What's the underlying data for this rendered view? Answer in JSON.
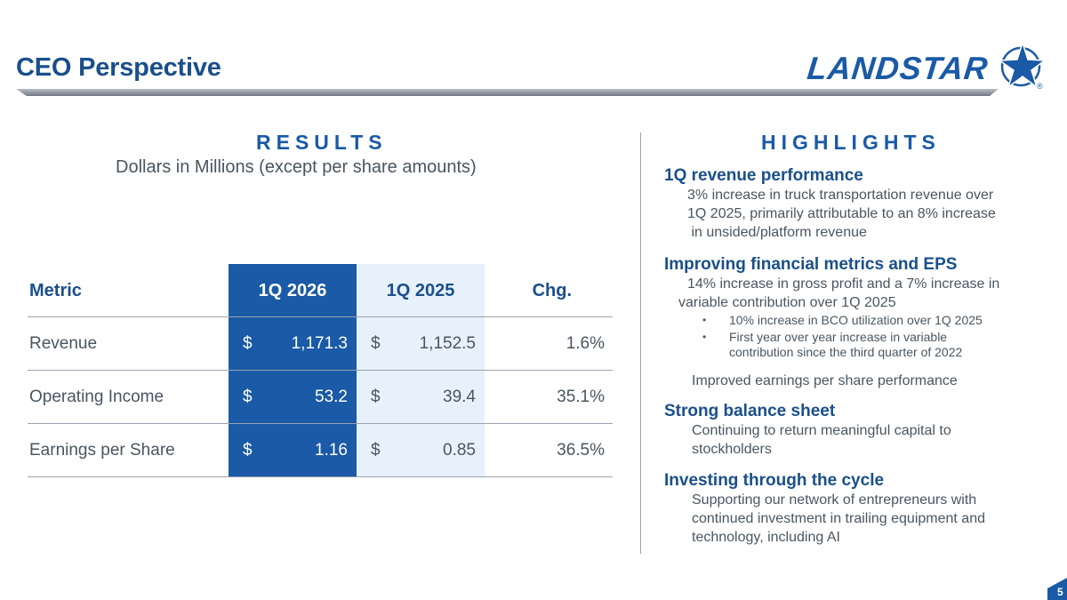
{
  "header": {
    "title": "CEO Perspective",
    "logo_text": "LANDSTAR",
    "logo_registered": "®"
  },
  "results": {
    "heading": "RESULTS",
    "subtitle": "Dollars in Millions (except per share amounts)",
    "columns": [
      "Metric",
      "1Q 2026",
      "1Q 2025",
      "Chg."
    ],
    "rows": [
      {
        "metric": "Revenue",
        "q1_2026": "1,171.3",
        "q1_2025": "1,152.5",
        "change": "1.6%"
      },
      {
        "metric": "Operating Income",
        "q1_2026": "53.2",
        "q1_2025": "39.4",
        "change": "35.1%"
      },
      {
        "metric": "Earnings per Share",
        "q1_2026": "1.16",
        "q1_2025": "0.85",
        "change": "36.5%"
      }
    ],
    "currency_symbol": "$"
  },
  "highlights": {
    "heading": "HIGHLIGHTS",
    "items": [
      {
        "title": "1Q revenue performance",
        "lines": [
          "3% increase in truck transportation revenue over",
          "1Q 2025, primarily attributable to an 8% increase",
          " in unsided/platform revenue"
        ]
      },
      {
        "title": "Improving financial metrics and EPS",
        "lines": [
          "14% increase in gross profit and a 7% increase in",
          "variable contribution over 1Q 2025"
        ],
        "bullets": [
          "10% increase in BCO utilization over 1Q 2025",
          "First year over year increase in variable",
          "contribution since the third quarter of 2022"
        ],
        "extra": "Improved earnings per share performance"
      },
      {
        "title": "Strong balance sheet",
        "lines": [
          "Continuing to return meaningful capital to",
          "stockholders"
        ]
      },
      {
        "title": "Investing through the cycle",
        "lines": [
          "Supporting our network of entrepreneurs with",
          "continued investment in trailing equipment and",
          "technology, including AI"
        ]
      }
    ]
  },
  "footer": {
    "page_number": "5"
  },
  "colors": {
    "brand_blue": "#1a5aa6",
    "title_blue": "#1a4f8b",
    "light_blue": "#e6f1fb"
  }
}
